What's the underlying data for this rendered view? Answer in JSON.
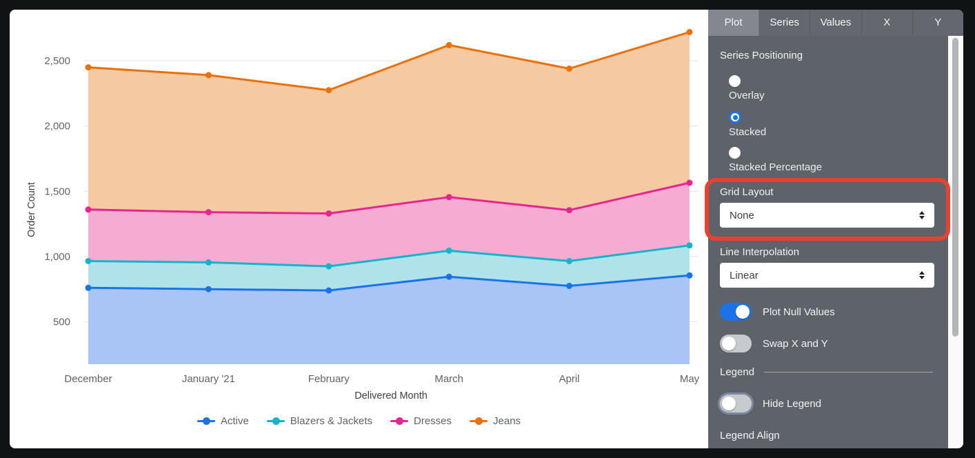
{
  "chart_data": {
    "type": "area",
    "stacking": "stacked",
    "x_categories": [
      "December",
      "January '21",
      "February",
      "March",
      "April",
      "May"
    ],
    "xlabel": "Delivered Month",
    "ylabel": "Order Count",
    "ylim": [
      175,
      2860
    ],
    "yticks": [
      500,
      1000,
      1500,
      2000,
      2500
    ],
    "grid": "horizontal",
    "legend_position": "bottom-center",
    "series": [
      {
        "name": "Active",
        "color": "#1a73e8",
        "fill": "#a9c5f6",
        "values": [
          760,
          750,
          740,
          845,
          775,
          855
        ],
        "stacked_totals": [
          760,
          750,
          740,
          845,
          775,
          855
        ]
      },
      {
        "name": "Blazers & Jackets",
        "color": "#12b5cb",
        "fill": "#b0e2ea",
        "values": [
          205,
          205,
          185,
          200,
          190,
          230
        ],
        "stacked_totals": [
          965,
          955,
          925,
          1045,
          965,
          1085
        ]
      },
      {
        "name": "Dresses",
        "color": "#e52592",
        "fill": "#f6abd3",
        "values": [
          395,
          385,
          405,
          410,
          390,
          480
        ],
        "stacked_totals": [
          1360,
          1340,
          1330,
          1455,
          1355,
          1565
        ]
      },
      {
        "name": "Jeans",
        "color": "#e8710a",
        "fill": "#f5c9a1",
        "values": [
          1090,
          1050,
          945,
          1165,
          1085,
          1155
        ],
        "stacked_totals": [
          2450,
          2390,
          2275,
          2620,
          2440,
          2720
        ]
      }
    ]
  },
  "panel": {
    "tabs": [
      {
        "label": "Plot",
        "active": true
      },
      {
        "label": "Series",
        "active": false
      },
      {
        "label": "Values",
        "active": false
      },
      {
        "label": "X",
        "active": false
      },
      {
        "label": "Y",
        "active": false
      }
    ],
    "series_positioning": {
      "label": "Series Positioning",
      "options": [
        {
          "label": "Overlay",
          "selected": false
        },
        {
          "label": "Stacked",
          "selected": true
        },
        {
          "label": "Stacked Percentage",
          "selected": false
        }
      ]
    },
    "grid_layout": {
      "label": "Grid Layout",
      "value": "None",
      "highlighted": true,
      "highlight_color": "#e8412f"
    },
    "line_interpolation": {
      "label": "Line Interpolation",
      "value": "Linear"
    },
    "plot_null_values": {
      "label": "Plot Null Values",
      "on": true
    },
    "swap_x_y": {
      "label": "Swap X and Y",
      "on": false
    },
    "legend_header": "Legend",
    "hide_legend": {
      "label": "Hide Legend",
      "on": false,
      "focused": true
    },
    "legend_align_label": "Legend Align",
    "accent_color": "#1a73e8"
  }
}
